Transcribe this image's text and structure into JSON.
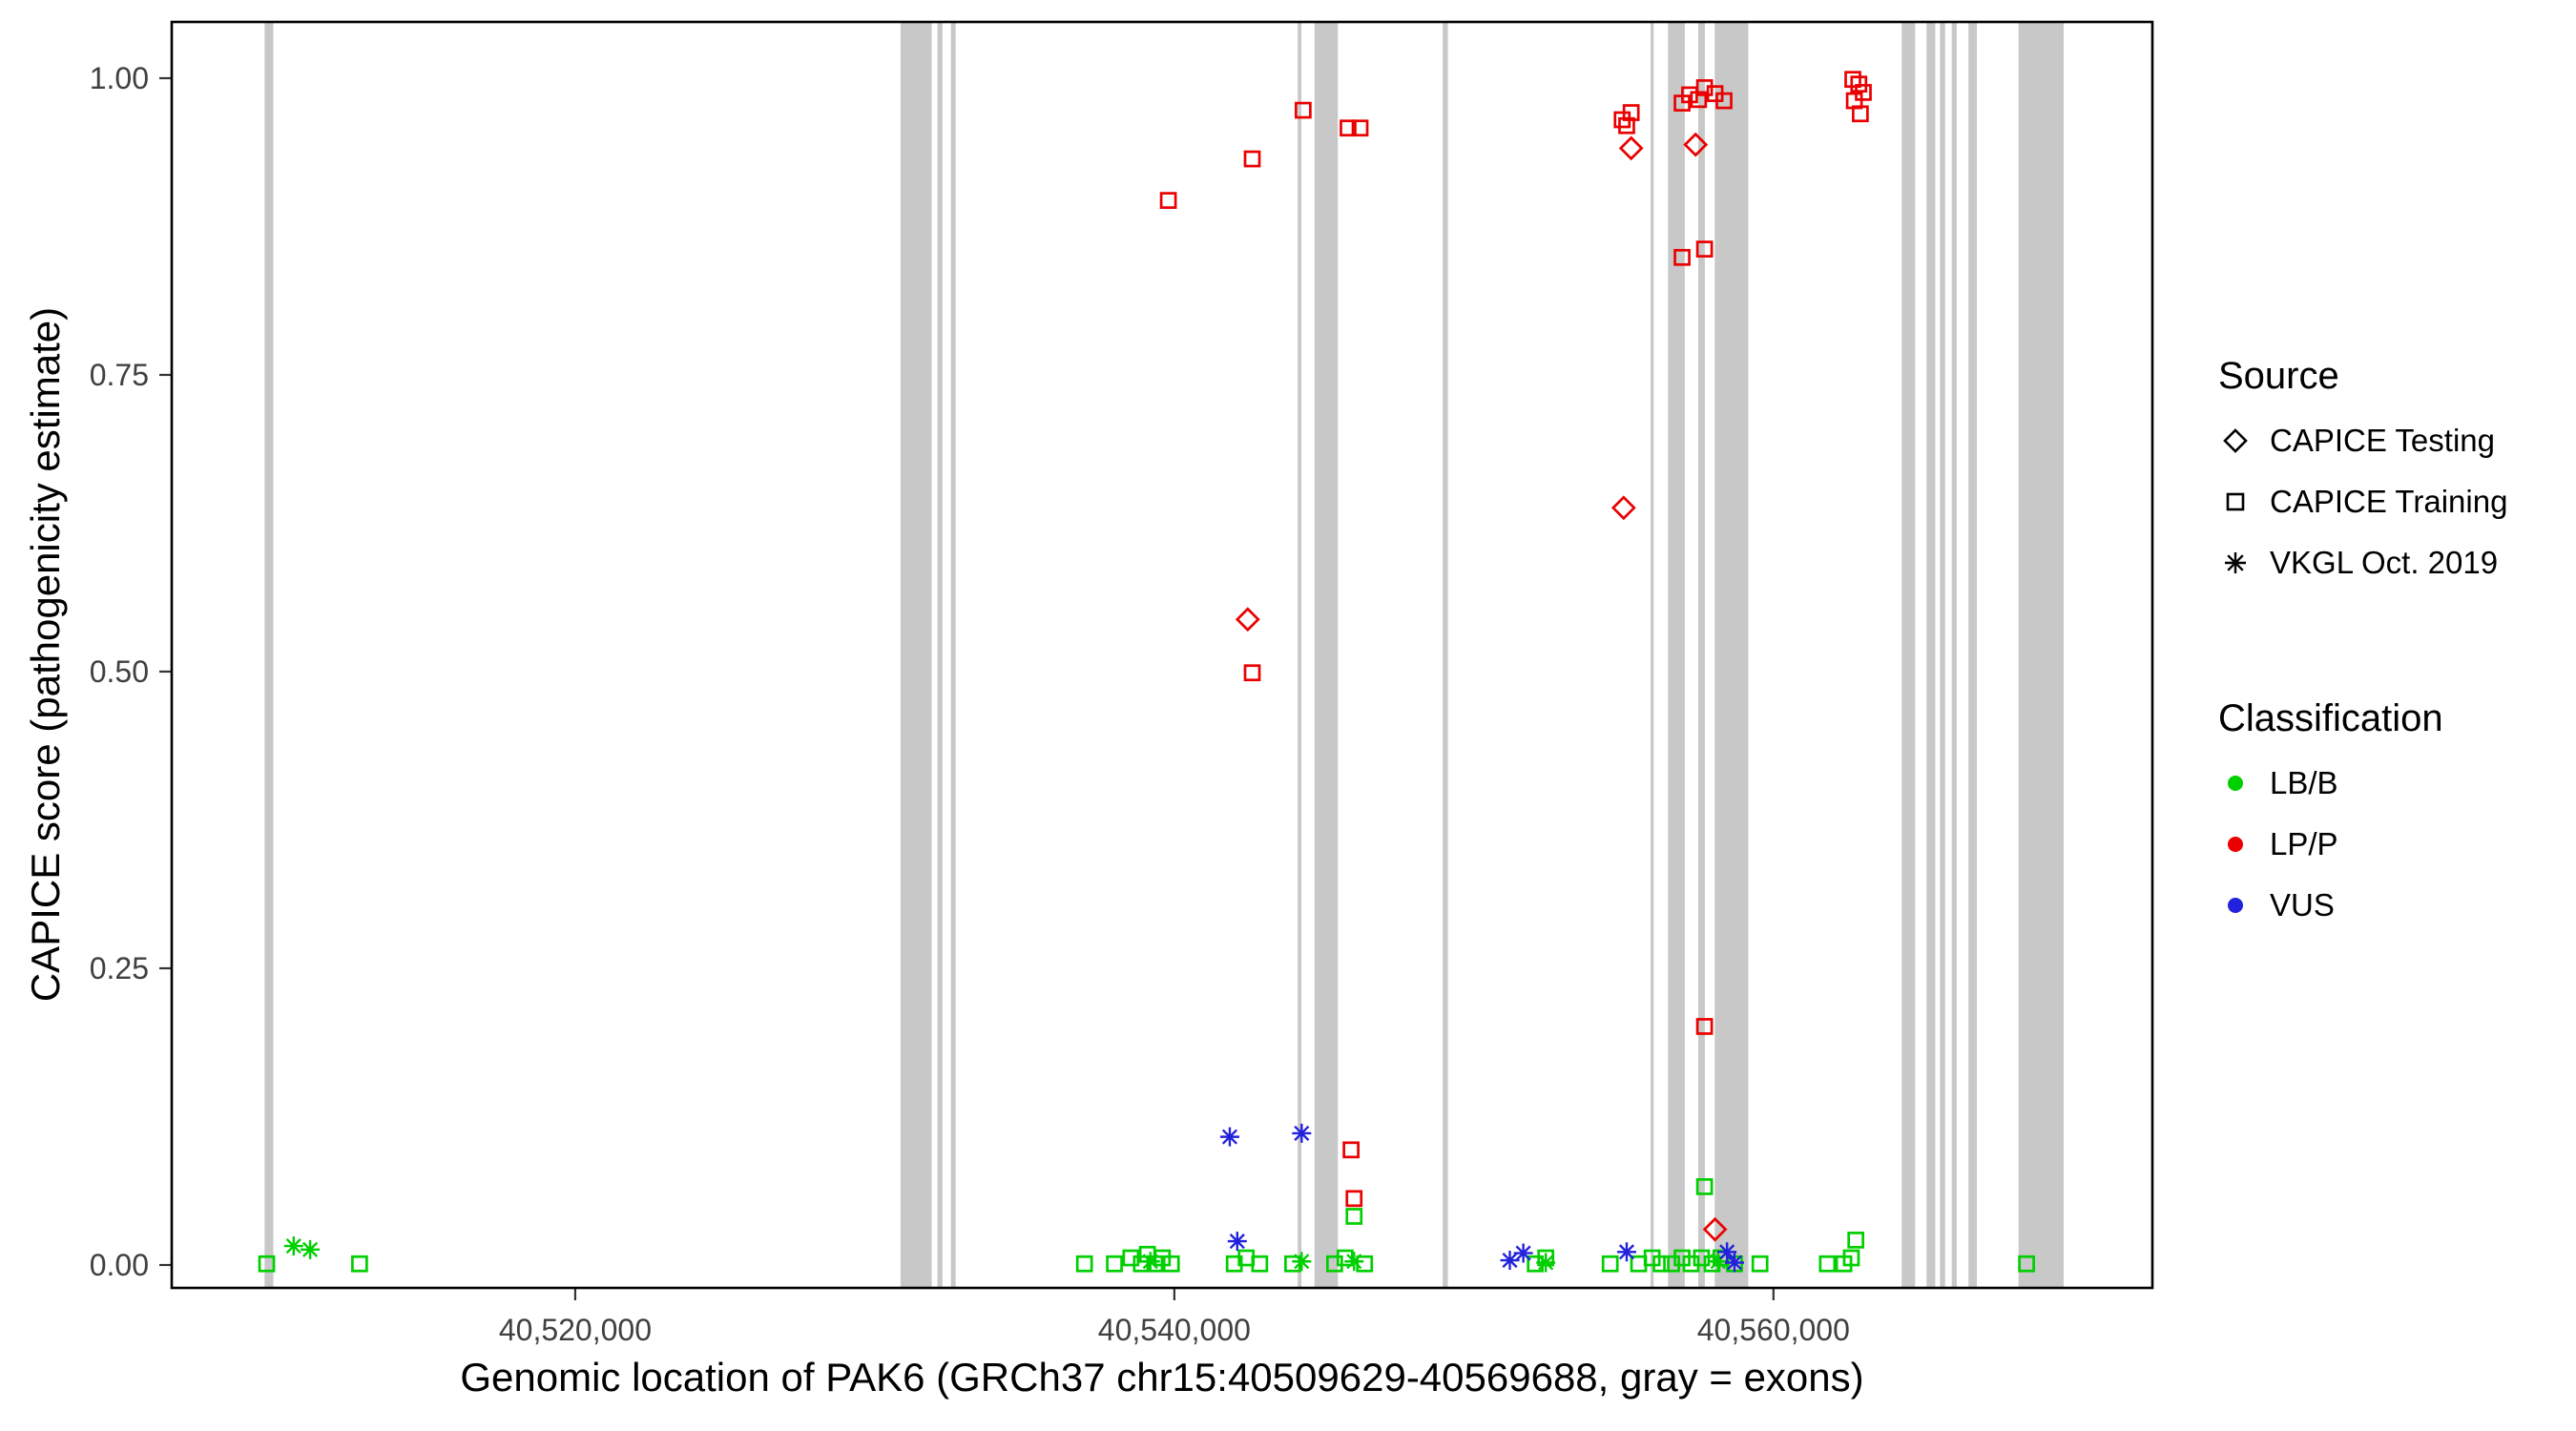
{
  "colors": {
    "exon": "#C8C8C8",
    "panel_border": "#000000",
    "tick_text": "#404040",
    "lbb_green": "#00CF00",
    "lpp_red": "#EA0000",
    "vus_blue": "#2222DD"
  },
  "legend": {
    "source": {
      "title": "Source",
      "items": [
        {
          "label": "CAPICE Testing",
          "shape": "diamond"
        },
        {
          "label": "CAPICE Training",
          "shape": "square"
        },
        {
          "label": "VKGL Oct. 2019",
          "shape": "asterisk"
        }
      ]
    },
    "classification": {
      "title": "Classification",
      "items": [
        {
          "label": "LB/B",
          "color": "#00CF00"
        },
        {
          "label": "LP/P",
          "color": "#EA0000"
        },
        {
          "label": "VUS",
          "color": "#2222DD"
        }
      ]
    }
  },
  "chart_data": {
    "type": "scatter",
    "title": "",
    "xlabel": "Genomic location of PAK6 (GRCh37 chr15:40509629-40569688, gray = exons)",
    "ylabel": "CAPICE score (pathogenicity estimate)",
    "xlim": [
      40506530,
      40572650
    ],
    "ylim": [
      -0.0193,
      1.0474
    ],
    "grid": false,
    "legend_position": "right",
    "x_ticks": [
      {
        "value": 40520000,
        "label": "40,520,000"
      },
      {
        "value": 40540000,
        "label": "40,540,000"
      },
      {
        "value": 40560000,
        "label": "40,560,000"
      }
    ],
    "y_ticks": [
      {
        "value": 0.0,
        "label": "0.00"
      },
      {
        "value": 0.25,
        "label": "0.25"
      },
      {
        "value": 0.5,
        "label": "0.50"
      },
      {
        "value": 0.75,
        "label": "0.75"
      },
      {
        "value": 1.0,
        "label": "1.00"
      }
    ],
    "exons": [
      [
        40509630,
        40509920
      ],
      [
        40530860,
        40531900
      ],
      [
        40532090,
        40532260
      ],
      [
        40532540,
        40532700
      ],
      [
        40544120,
        40544240
      ],
      [
        40544680,
        40545460
      ],
      [
        40548960,
        40549130
      ],
      [
        40555900,
        40556000
      ],
      [
        40556480,
        40557040
      ],
      [
        40557490,
        40557710
      ],
      [
        40558040,
        40559160
      ],
      [
        40564280,
        40564730
      ],
      [
        40565110,
        40565400
      ],
      [
        40565560,
        40565730
      ],
      [
        40565950,
        40566120
      ],
      [
        40566510,
        40566790
      ],
      [
        40568180,
        40569688
      ]
    ],
    "series": [
      {
        "name": "LB/B — CAPICE Training",
        "classification": "LB/B",
        "source": "CAPICE Training",
        "shape": "square",
        "color": "#00CF00",
        "points": [
          [
            40509700,
            0.001
          ],
          [
            40512800,
            0.001
          ],
          [
            40537000,
            0.001
          ],
          [
            40538000,
            0.001
          ],
          [
            40538550,
            0.006
          ],
          [
            40538900,
            0.001
          ],
          [
            40539100,
            0.009
          ],
          [
            40539350,
            0.001
          ],
          [
            40539600,
            0.006
          ],
          [
            40539900,
            0.001
          ],
          [
            40542000,
            0.001
          ],
          [
            40542400,
            0.006
          ],
          [
            40542850,
            0.001
          ],
          [
            40543950,
            0.001
          ],
          [
            40545350,
            0.001
          ],
          [
            40545700,
            0.006
          ],
          [
            40546000,
            0.041
          ],
          [
            40546350,
            0.001
          ],
          [
            40552050,
            0.001
          ],
          [
            40552400,
            0.006
          ],
          [
            40554550,
            0.001
          ],
          [
            40555500,
            0.001
          ],
          [
            40555950,
            0.006
          ],
          [
            40556250,
            0.001
          ],
          [
            40556600,
            0.001
          ],
          [
            40556950,
            0.006
          ],
          [
            40557250,
            0.001
          ],
          [
            40557600,
            0.006
          ],
          [
            40557950,
            0.001
          ],
          [
            40558250,
            0.006
          ],
          [
            40558700,
            0.001
          ],
          [
            40559550,
            0.001
          ],
          [
            40557700,
            0.066
          ],
          [
            40561800,
            0.001
          ],
          [
            40562350,
            0.001
          ],
          [
            40562750,
            0.021
          ],
          [
            40562600,
            0.006
          ],
          [
            40568450,
            0.001
          ]
        ]
      },
      {
        "name": "LB/B — VKGL Oct. 2019",
        "classification": "LB/B",
        "source": "VKGL Oct. 2019",
        "shape": "asterisk",
        "color": "#00CF00",
        "points": [
          [
            40510600,
            0.016
          ],
          [
            40511150,
            0.013
          ],
          [
            40539200,
            0.003
          ],
          [
            40544250,
            0.003
          ],
          [
            40546000,
            0.003
          ],
          [
            40552400,
            0.002
          ],
          [
            40558150,
            0.003
          ]
        ]
      },
      {
        "name": "VUS — VKGL Oct. 2019",
        "classification": "VUS",
        "source": "VKGL Oct. 2019",
        "shape": "asterisk",
        "color": "#2222DD",
        "points": [
          [
            40541850,
            0.108
          ],
          [
            40544250,
            0.111
          ],
          [
            40542100,
            0.02
          ],
          [
            40551200,
            0.004
          ],
          [
            40551650,
            0.01
          ],
          [
            40555100,
            0.011
          ],
          [
            40558450,
            0.011
          ],
          [
            40558700,
            0.002
          ]
        ]
      },
      {
        "name": "LP/P — CAPICE Training",
        "classification": "LP/P",
        "source": "CAPICE Training",
        "shape": "square",
        "color": "#EA0000",
        "points": [
          [
            40539800,
            0.897
          ],
          [
            40542600,
            0.932
          ],
          [
            40542600,
            0.499
          ],
          [
            40544300,
            0.973
          ],
          [
            40545800,
            0.958
          ],
          [
            40546200,
            0.958
          ],
          [
            40545900,
            0.097
          ],
          [
            40546000,
            0.056
          ],
          [
            40554950,
            0.965
          ],
          [
            40555100,
            0.96
          ],
          [
            40555250,
            0.971
          ],
          [
            40556950,
            0.979
          ],
          [
            40557200,
            0.986
          ],
          [
            40557500,
            0.982
          ],
          [
            40557700,
            0.992
          ],
          [
            40558050,
            0.987
          ],
          [
            40558350,
            0.981
          ],
          [
            40556950,
            0.849
          ],
          [
            40557700,
            0.856
          ],
          [
            40557700,
            0.201
          ],
          [
            40562650,
            0.999
          ],
          [
            40562850,
            0.995
          ],
          [
            40563000,
            0.988
          ],
          [
            40562700,
            0.981
          ],
          [
            40562900,
            0.97
          ]
        ]
      },
      {
        "name": "LP/P — CAPICE Testing",
        "classification": "LP/P",
        "source": "CAPICE Testing",
        "shape": "diamond",
        "color": "#EA0000",
        "points": [
          [
            40542450,
            0.544
          ],
          [
            40555000,
            0.638
          ],
          [
            40555250,
            0.941
          ],
          [
            40557400,
            0.944
          ],
          [
            40558050,
            0.03
          ]
        ]
      }
    ]
  }
}
